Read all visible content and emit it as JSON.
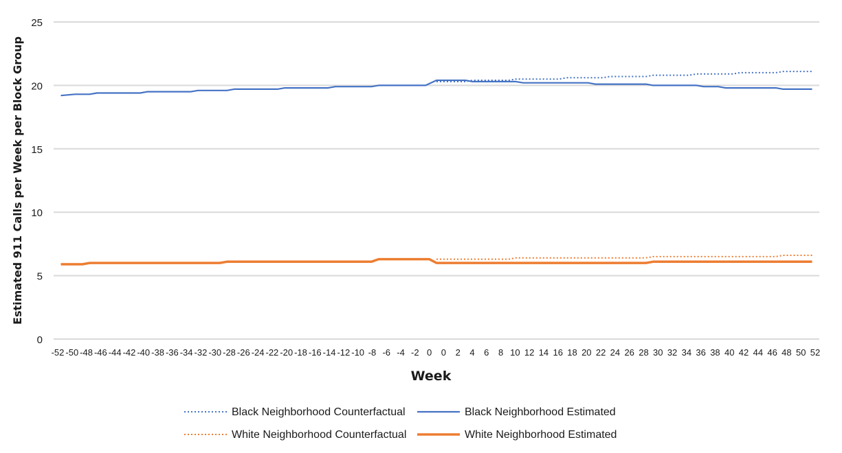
{
  "chart_data": {
    "type": "line",
    "title": "",
    "xlabel": "Week",
    "ylabel": "Estimated 911 Calls per Week per Block Group",
    "ylim": [
      0,
      25
    ],
    "yticks": [
      0,
      5,
      10,
      15,
      20,
      25
    ],
    "xlim": [
      -53,
      53
    ],
    "xtick_labels": [
      "-52",
      "-50",
      "-48",
      "-46",
      "-44",
      "-42",
      "-40",
      "-38",
      "-36",
      "-34",
      "-32",
      "-30",
      "-28",
      "-26",
      "-24",
      "-22",
      "-20",
      "-18",
      "-16",
      "-14",
      "-12",
      "-10",
      "-8",
      "-6",
      "-4",
      "-2",
      "0",
      "0",
      "2",
      "4",
      "6",
      "8",
      "10",
      "12",
      "14",
      "16",
      "18",
      "20",
      "22",
      "24",
      "26",
      "28",
      "30",
      "32",
      "34",
      "36",
      "38",
      "40",
      "42",
      "44",
      "46",
      "48",
      "50",
      "52"
    ],
    "grid": "horizontal",
    "legend_position": "bottom",
    "series": [
      {
        "name": "Black Neighborhood Counterfactual",
        "color": "#4472c4",
        "style": "dotted",
        "points": [
          [
            0,
            20.3
          ],
          [
            4,
            20.3
          ],
          [
            5,
            20.4
          ],
          [
            10,
            20.4
          ],
          [
            11,
            20.5
          ],
          [
            17,
            20.5
          ],
          [
            18,
            20.6
          ],
          [
            23,
            20.6
          ],
          [
            24,
            20.7
          ],
          [
            29,
            20.7
          ],
          [
            30,
            20.8
          ],
          [
            35,
            20.8
          ],
          [
            36,
            20.9
          ],
          [
            41,
            20.9
          ],
          [
            42,
            21.0
          ],
          [
            47,
            21.0
          ],
          [
            48,
            21.1
          ],
          [
            52,
            21.1
          ]
        ]
      },
      {
        "name": "Black Neighborhood Estimated",
        "color": "#4472c4",
        "style": "solid",
        "points": [
          [
            -52,
            19.2
          ],
          [
            -50,
            19.3
          ],
          [
            -48,
            19.3
          ],
          [
            -47,
            19.4
          ],
          [
            -41,
            19.4
          ],
          [
            -40,
            19.5
          ],
          [
            -34,
            19.5
          ],
          [
            -33,
            19.6
          ],
          [
            -29,
            19.6
          ],
          [
            -28,
            19.7
          ],
          [
            -22,
            19.7
          ],
          [
            -21,
            19.8
          ],
          [
            -15,
            19.8
          ],
          [
            -14,
            19.9
          ],
          [
            -9,
            19.9
          ],
          [
            -8,
            20.0
          ],
          [
            -2,
            20.0
          ],
          [
            -1.5,
            20.0
          ],
          [
            0,
            20.4
          ],
          [
            4,
            20.4
          ],
          [
            5,
            20.3
          ],
          [
            11,
            20.3
          ],
          [
            12,
            20.2
          ],
          [
            21,
            20.2
          ],
          [
            22,
            20.1
          ],
          [
            29,
            20.1
          ],
          [
            30,
            20.0
          ],
          [
            36,
            20.0
          ],
          [
            37,
            19.9
          ],
          [
            39,
            19.9
          ],
          [
            40,
            19.8
          ],
          [
            47,
            19.8
          ],
          [
            48,
            19.7
          ],
          [
            52,
            19.7
          ]
        ]
      },
      {
        "name": "White Neighborhood Counterfactual",
        "color": "#ed7d31",
        "style": "dotted",
        "points": [
          [
            0,
            6.3
          ],
          [
            10,
            6.3
          ],
          [
            11,
            6.4
          ],
          [
            29,
            6.4
          ],
          [
            30,
            6.5
          ],
          [
            47,
            6.5
          ],
          [
            48,
            6.6
          ],
          [
            52,
            6.6
          ]
        ]
      },
      {
        "name": "White Neighborhood Estimated",
        "color": "#ed7d31",
        "style": "solid",
        "points": [
          [
            -52,
            5.9
          ],
          [
            -51,
            5.9
          ],
          [
            -49,
            5.9
          ],
          [
            -48,
            6.0
          ],
          [
            -31,
            6.0
          ],
          [
            -30,
            6.0
          ],
          [
            -29,
            6.1
          ],
          [
            -10,
            6.1
          ],
          [
            -9,
            6.1
          ],
          [
            -8,
            6.3
          ],
          [
            -1,
            6.3
          ],
          [
            -1,
            6.3
          ],
          [
            0,
            6.0
          ],
          [
            29,
            6.0
          ],
          [
            30,
            6.1
          ],
          [
            52,
            6.1
          ]
        ]
      }
    ]
  }
}
